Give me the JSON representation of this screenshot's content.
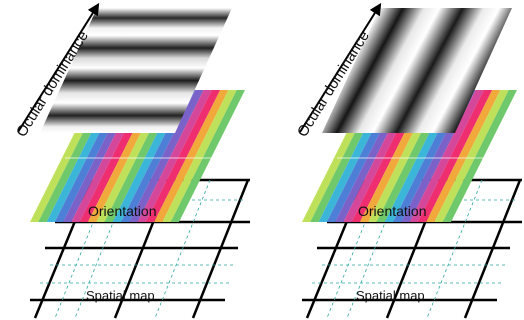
{
  "panels": [
    {
      "id": "left",
      "ocular_label": "Ocular dominance",
      "orientation_label": "Orientation",
      "spatial_label": "Spatial map"
    },
    {
      "id": "right",
      "ocular_label": "Ocular dominance",
      "orientation_label": "Orientation",
      "spatial_label": "Spatial map"
    }
  ],
  "colors": {
    "orientation_stripes": [
      "#bfe05a",
      "#6fc96a",
      "#3cb6d8",
      "#4d7fd6",
      "#7a62c9",
      "#d4479a",
      "#ee2e6e",
      "#f2a93c"
    ],
    "grid_bold": "#000000",
    "grid_dashed": "#2aa6a0"
  }
}
